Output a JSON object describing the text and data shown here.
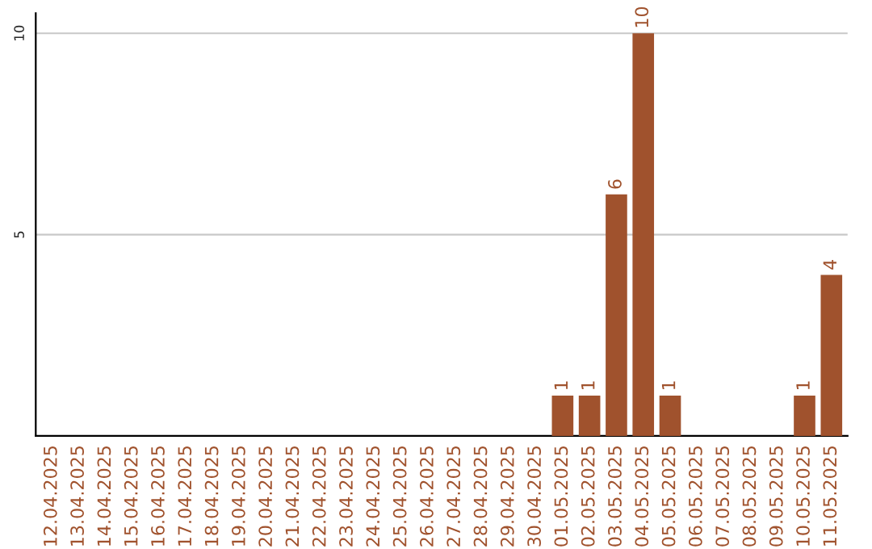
{
  "chart_data": {
    "type": "bar",
    "categories": [
      "12.04.2025",
      "13.04.2025",
      "14.04.2025",
      "15.04.2025",
      "16.04.2025",
      "17.04.2025",
      "18.04.2025",
      "19.04.2025",
      "20.04.2025",
      "21.04.2025",
      "22.04.2025",
      "23.04.2025",
      "24.04.2025",
      "25.04.2025",
      "26.04.2025",
      "27.04.2025",
      "28.04.2025",
      "29.04.2025",
      "30.04.2025",
      "01.05.2025",
      "02.05.2025",
      "03.05.2025",
      "04.05.2025",
      "05.05.2025",
      "06.05.2025",
      "07.05.2025",
      "08.05.2025",
      "09.05.2025",
      "10.05.2025",
      "11.05.2025"
    ],
    "values": [
      null,
      null,
      null,
      null,
      null,
      null,
      null,
      null,
      null,
      null,
      null,
      null,
      null,
      null,
      null,
      null,
      null,
      null,
      null,
      1,
      1,
      6,
      10,
      1,
      null,
      null,
      null,
      null,
      1,
      4
    ],
    "value_labels": [
      null,
      null,
      null,
      null,
      null,
      null,
      null,
      null,
      null,
      null,
      null,
      null,
      null,
      null,
      null,
      null,
      null,
      null,
      null,
      "1",
      "1",
      "6",
      "10",
      "1",
      null,
      null,
      null,
      null,
      "1",
      "4"
    ],
    "color": "#a0522d",
    "ylim": [
      0,
      10.5
    ],
    "yticks": [
      5,
      10
    ],
    "grid": "y"
  }
}
